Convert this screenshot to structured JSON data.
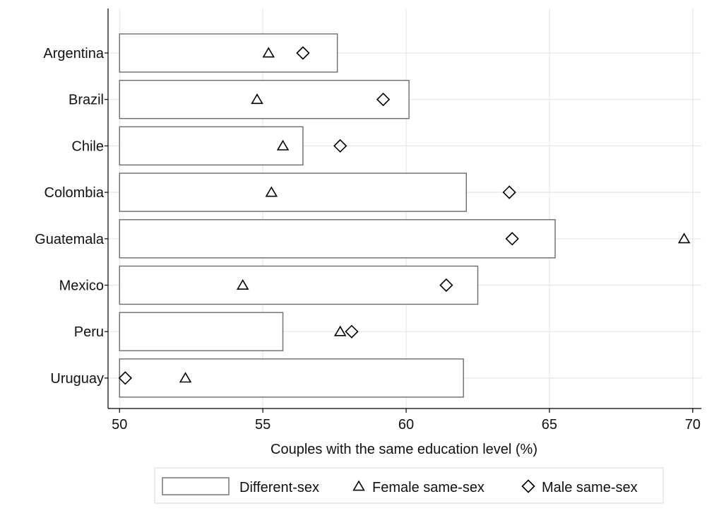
{
  "chart_data": {
    "type": "bar",
    "orientation": "horizontal",
    "categories": [
      "Argentina",
      "Brazil",
      "Chile",
      "Colombia",
      "Guatemala",
      "Mexico",
      "Peru",
      "Uruguay"
    ],
    "series": [
      {
        "name": "Different-sex",
        "mark": "bar",
        "values": [
          57.6,
          60.1,
          56.4,
          62.1,
          65.2,
          62.5,
          55.7,
          62.0
        ]
      },
      {
        "name": "Female same-sex",
        "mark": "triangle",
        "values": [
          55.2,
          54.8,
          55.7,
          55.3,
          69.7,
          54.3,
          57.7,
          52.3
        ]
      },
      {
        "name": "Male same-sex",
        "mark": "diamond",
        "values": [
          56.4,
          59.2,
          57.7,
          63.6,
          63.7,
          61.4,
          58.1,
          50.2
        ]
      }
    ],
    "title": "",
    "xlabel": "Couples with the same education level (%)",
    "ylabel": "",
    "xlim": [
      49.6,
      70.3
    ],
    "bar_base": 50,
    "xticks": [
      50,
      55,
      60,
      65,
      70
    ],
    "grid": true,
    "legend_position": "bottom"
  }
}
